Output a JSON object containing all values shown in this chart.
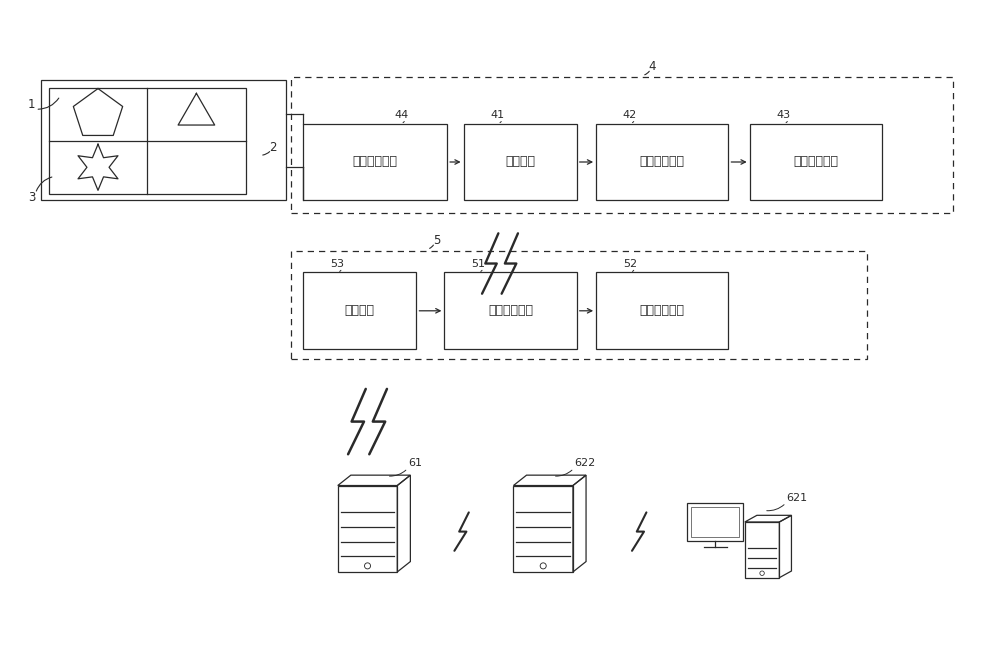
{
  "bg_color": "#ffffff",
  "line_color": "#2a2a2a",
  "box_texts": {
    "timing": "时序控制电路",
    "acquire": "采集电路",
    "convert1": "第一转换电路",
    "send1": "第一发送电路",
    "receive": "接收电路",
    "convert2": "第二转换电路",
    "send2": "第二发送电路"
  },
  "font_size_box": 9,
  "font_size_label": 8.5
}
